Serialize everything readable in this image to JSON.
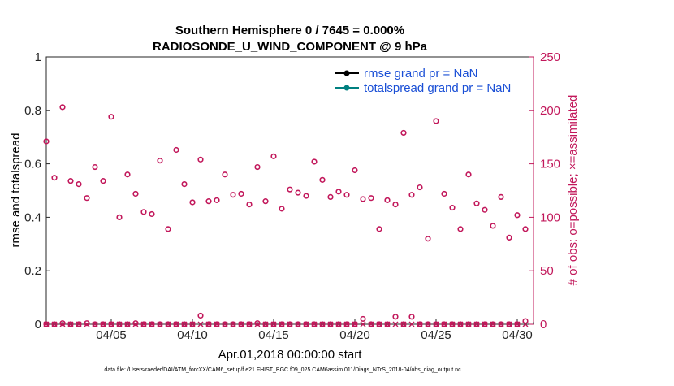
{
  "chart_data": {
    "type": "scatter",
    "title_lines": [
      "Southern Hemisphere 0 / 7645 = 0.000%",
      "RADIOSONDE_U_WIND_COMPONENT @ 9 hPa"
    ],
    "xlabel": "Apr.01,2018 00:00:00 start",
    "ylabel_left": "rmse and totalspread",
    "ylabel_right": "# of obs: o=possible; ×=assimilated",
    "xlim": [
      1,
      31
    ],
    "ylim_left": [
      0,
      1
    ],
    "ylim_right": [
      0,
      250
    ],
    "x_tick_labels": [
      "04/05",
      "04/10",
      "04/15",
      "04/20",
      "04/25",
      "04/30"
    ],
    "x_tick_values": [
      5,
      10,
      15,
      20,
      25,
      30
    ],
    "y_left_ticks": [
      "0",
      "0.2",
      "0.4",
      "0.6",
      "0.8",
      "1"
    ],
    "y_right_ticks": [
      "0",
      "50",
      "100",
      "150",
      "200",
      "250"
    ],
    "grid": false,
    "legend_position": "top-right",
    "legend": [
      {
        "label": "rmse grand pr = NaN",
        "color": "#000000"
      },
      {
        "label": "totalspread grand pr = NaN",
        "color": "#008080"
      }
    ],
    "colors": {
      "obs": "#c2185b",
      "rmse": "#000000",
      "totalspread": "#008080",
      "legend_text": "#1a4fd6"
    },
    "series": [
      {
        "name": "possible (o)",
        "axis": "right",
        "marker": "circle",
        "x": [
          1.0,
          1.5,
          2.0,
          2.5,
          3.0,
          3.5,
          4.0,
          4.5,
          5.0,
          5.5,
          6.0,
          6.5,
          7.0,
          7.5,
          8.0,
          8.5,
          9.0,
          9.5,
          10.0,
          10.5,
          11.0,
          11.5,
          12.0,
          12.5,
          13.0,
          13.5,
          14.0,
          14.5,
          15.0,
          15.5,
          16.0,
          16.5,
          17.0,
          17.5,
          18.0,
          18.5,
          19.0,
          19.5,
          20.0,
          20.5,
          21.0,
          21.5,
          22.0,
          22.5,
          23.0,
          23.5,
          24.0,
          24.5,
          25.0,
          25.5,
          26.0,
          26.5,
          27.0,
          27.5,
          28.0,
          28.5,
          29.0,
          29.5,
          30.0,
          30.5
        ],
        "y": [
          171,
          137,
          203,
          134,
          131,
          118,
          147,
          134,
          194,
          100,
          140,
          122,
          105,
          103,
          153,
          89,
          163,
          131,
          114,
          154,
          115,
          116,
          140,
          121,
          122,
          112,
          147,
          115,
          157,
          108,
          126,
          123,
          120,
          152,
          135,
          119,
          124,
          121,
          144,
          117,
          118,
          89,
          116,
          112,
          179,
          121,
          128,
          80,
          190,
          122,
          109,
          89,
          140,
          113,
          107,
          92,
          119,
          81,
          102,
          89
        ]
      },
      {
        "name": "possible (o) near zero",
        "axis": "right",
        "marker": "circle",
        "x": [
          1.0,
          1.5,
          2.0,
          2.5,
          3.0,
          3.5,
          4.0,
          4.5,
          5.0,
          5.5,
          6.0,
          6.5,
          7.0,
          7.5,
          8.0,
          8.5,
          9.0,
          9.5,
          10.0,
          10.5,
          11.0,
          11.5,
          12.0,
          12.5,
          13.0,
          13.5,
          14.0,
          14.5,
          15.0,
          15.5,
          16.0,
          16.5,
          17.0,
          17.5,
          18.0,
          18.5,
          19.0,
          19.5,
          20.0,
          20.5,
          21.0,
          21.5,
          22.0,
          22.5,
          23.0,
          23.5,
          24.0,
          24.5,
          25.0,
          25.5,
          26.0,
          26.5,
          27.0,
          27.5,
          28.0,
          28.5,
          29.0,
          29.5,
          30.0,
          30.5
        ],
        "y": [
          0,
          0,
          1,
          0,
          0,
          1,
          0,
          0,
          0,
          0,
          0,
          1,
          0,
          0,
          0,
          0,
          0,
          0,
          0,
          8,
          0,
          0,
          0,
          0,
          0,
          0,
          1,
          0,
          0,
          0,
          0,
          0,
          0,
          0,
          0,
          0,
          0,
          0,
          0,
          5,
          0,
          0,
          0,
          7,
          0,
          7,
          0,
          0,
          0,
          0,
          0,
          0,
          0,
          0,
          0,
          0,
          0,
          0,
          0,
          3
        ]
      },
      {
        "name": "assimilated (×)",
        "axis": "right",
        "marker": "x",
        "x": [
          1.0,
          1.5,
          2.0,
          2.5,
          3.0,
          3.5,
          4.0,
          4.5,
          5.0,
          5.5,
          6.0,
          6.5,
          7.0,
          7.5,
          8.0,
          8.5,
          9.0,
          9.5,
          10.0,
          10.5,
          11.0,
          11.5,
          12.0,
          12.5,
          13.0,
          13.5,
          14.0,
          14.5,
          15.0,
          15.5,
          16.0,
          16.5,
          17.0,
          17.5,
          18.0,
          18.5,
          19.0,
          19.5,
          20.0,
          20.5,
          21.0,
          21.5,
          22.0,
          22.5,
          23.0,
          23.5,
          24.0,
          24.5,
          25.0,
          25.5,
          26.0,
          26.5,
          27.0,
          27.5,
          28.0,
          28.5,
          29.0,
          29.5,
          30.0,
          30.5
        ],
        "y": [
          0,
          0,
          0,
          0,
          0,
          0,
          0,
          0,
          0,
          0,
          0,
          0,
          0,
          0,
          0,
          0,
          0,
          0,
          0,
          0,
          0,
          0,
          0,
          0,
          0,
          0,
          0,
          0,
          0,
          0,
          0,
          0,
          0,
          0,
          0,
          0,
          0,
          0,
          0,
          0,
          0,
          0,
          0,
          0,
          0,
          0,
          0,
          0,
          0,
          0,
          0,
          0,
          0,
          0,
          0,
          0,
          0,
          0,
          0,
          0
        ]
      }
    ]
  },
  "footnote": "data file: /Users/raeder/DAI/ATM_forcXX/CAM6_setup/f.e21.FHIST_BGC.f09_025.CAM6assim.011/Diags_NTrS_2018-04/obs_diag_output.nc"
}
